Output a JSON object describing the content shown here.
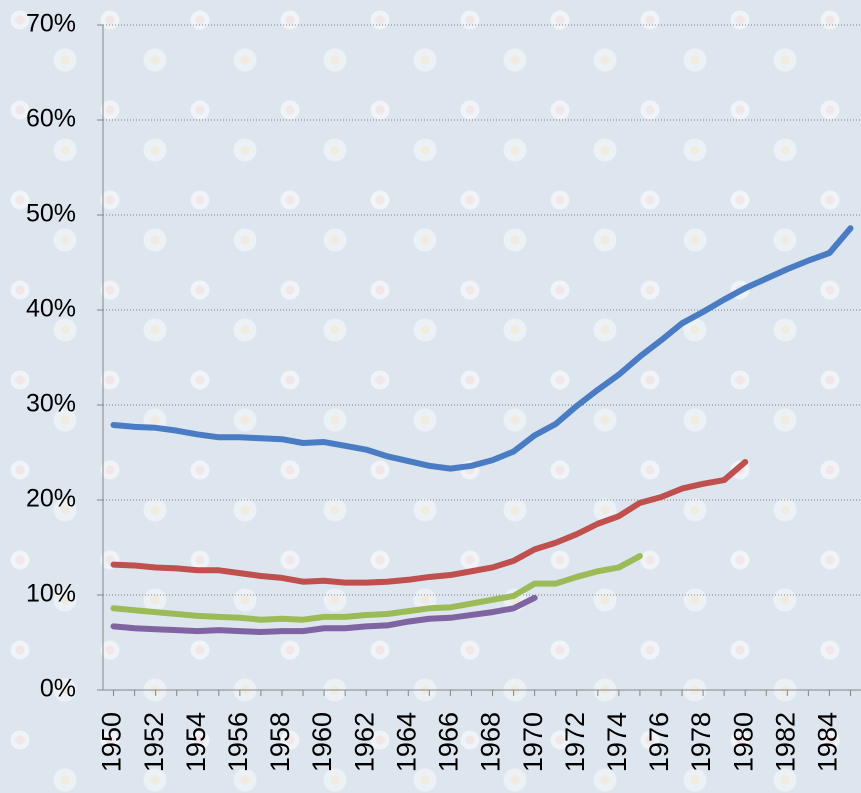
{
  "chart_data": {
    "type": "line",
    "categories": [
      1950,
      null,
      1952,
      null,
      1954,
      null,
      1956,
      null,
      1958,
      null,
      1960,
      null,
      1962,
      null,
      1964,
      null,
      1966,
      null,
      1968,
      null,
      1970,
      null,
      1972,
      null,
      1974,
      null,
      1976,
      null,
      1978,
      null,
      1980,
      null,
      1982,
      null,
      1984,
      null
    ],
    "series": [
      {
        "color": "#4a7cc4",
        "values": [
          27.9,
          27.7,
          27.6,
          27.3,
          26.9,
          26.6,
          26.6,
          26.5,
          26.4,
          26.0,
          26.1,
          25.7,
          25.3,
          24.6,
          24.1,
          23.6,
          23.3,
          23.6,
          24.2,
          25.1,
          26.8,
          28.0,
          29.9,
          31.6,
          33.2,
          35.1,
          36.8,
          38.6,
          39.8,
          41.1,
          42.3,
          43.3,
          44.3,
          45.2,
          46.0,
          48.6
        ]
      },
      {
        "color": "#c0504d",
        "values": [
          13.2,
          13.1,
          12.9,
          12.8,
          12.6,
          12.6,
          12.3,
          12.0,
          11.8,
          11.4,
          11.5,
          11.3,
          11.3,
          11.4,
          11.6,
          11.9,
          12.1,
          12.5,
          12.9,
          13.6,
          14.8,
          15.5,
          16.4,
          17.5,
          18.3,
          19.7,
          20.3,
          21.2,
          21.7,
          22.1,
          24.0,
          null,
          null,
          null,
          null,
          null
        ]
      },
      {
        "color": "#9bbb59",
        "values": [
          8.6,
          8.4,
          8.2,
          8.0,
          7.8,
          7.7,
          7.6,
          7.4,
          7.5,
          7.4,
          7.7,
          7.7,
          7.9,
          8.0,
          8.3,
          8.6,
          8.7,
          9.1,
          9.5,
          9.9,
          11.2,
          11.2,
          11.9,
          12.5,
          12.9,
          14.1,
          null,
          null,
          null,
          null,
          null,
          null,
          null,
          null,
          null,
          null
        ]
      },
      {
        "color": "#8064a2",
        "values": [
          6.7,
          6.5,
          6.4,
          6.3,
          6.2,
          6.3,
          6.2,
          6.1,
          6.2,
          6.2,
          6.5,
          6.5,
          6.7,
          6.8,
          7.2,
          7.5,
          7.6,
          7.9,
          8.2,
          8.6,
          9.7,
          null,
          null,
          null,
          null,
          null,
          null,
          null,
          null,
          null,
          null,
          null,
          null,
          null,
          null,
          null
        ]
      }
    ],
    "ylim": [
      0,
      70
    ],
    "yticks": [
      {
        "value": 0,
        "label": "0%"
      },
      {
        "value": 10,
        "label": "10%"
      },
      {
        "value": 20,
        "label": "20%"
      },
      {
        "value": 30,
        "label": "30%"
      },
      {
        "value": 40,
        "label": "40%"
      },
      {
        "value": 50,
        "label": "50%"
      },
      {
        "value": 60,
        "label": "60%"
      },
      {
        "value": 70,
        "label": "70%"
      }
    ],
    "grid": true
  }
}
